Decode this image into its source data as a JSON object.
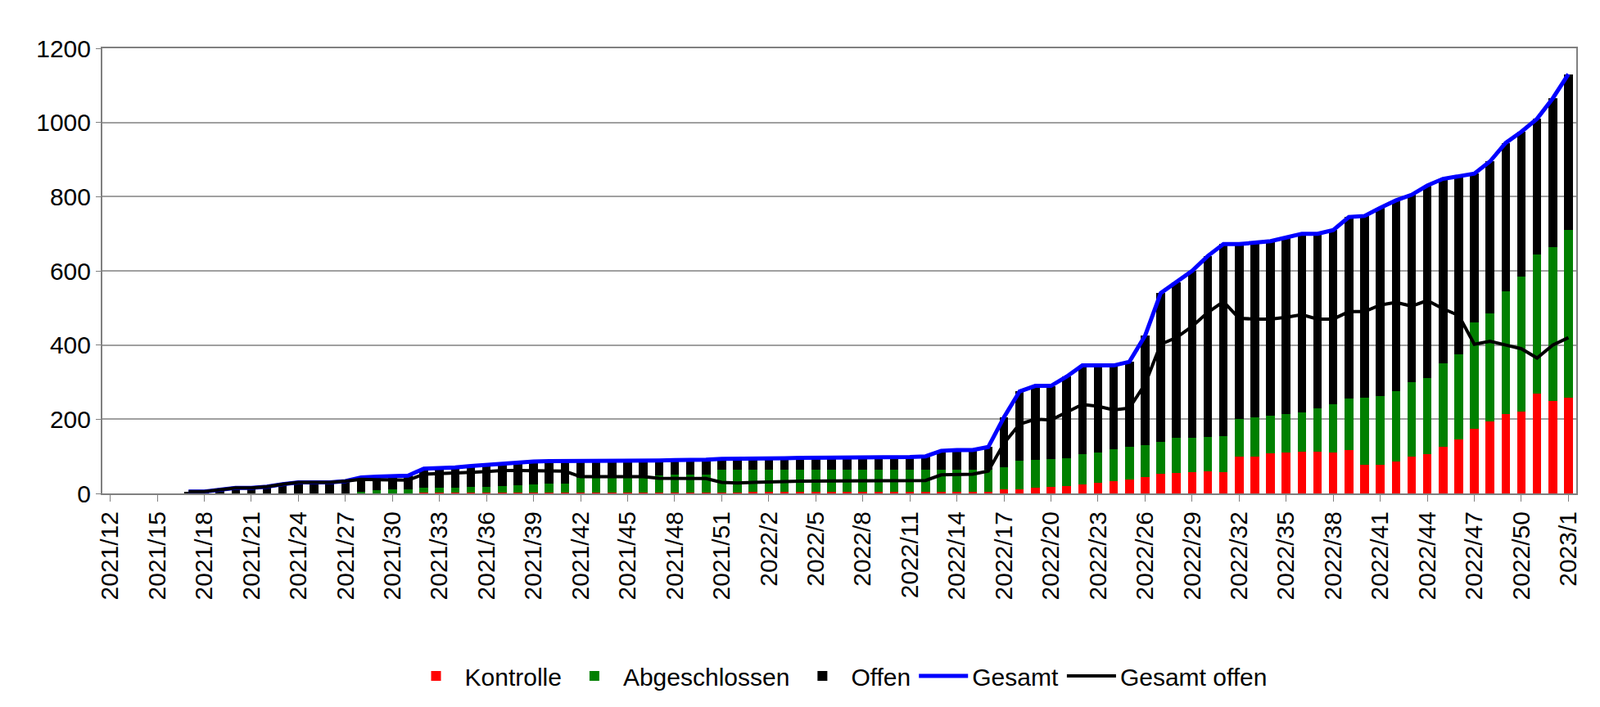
{
  "chart_data": {
    "type": "bar",
    "stacked": true,
    "grid": true,
    "legend": "bottom",
    "ylim": [
      0,
      1200
    ],
    "yticks": [
      0,
      200,
      400,
      600,
      800,
      1000,
      1200
    ],
    "categories": [
      "2021/12",
      null,
      null,
      "2021/15",
      null,
      null,
      "2021/18",
      null,
      null,
      "2021/21",
      null,
      null,
      "2021/24",
      null,
      null,
      "2021/27",
      null,
      null,
      "2021/30",
      null,
      null,
      "2021/33",
      null,
      null,
      "2021/36",
      null,
      null,
      "2021/39",
      null,
      null,
      "2021/42",
      null,
      null,
      "2021/45",
      null,
      null,
      "2021/48",
      null,
      null,
      "2021/51",
      null,
      null,
      "2022/2",
      null,
      null,
      "2022/5",
      null,
      null,
      "2022/8",
      null,
      null,
      "2022/11",
      null,
      null,
      "2022/14",
      null,
      null,
      "2022/17",
      null,
      null,
      "2022/20",
      null,
      null,
      "2022/23",
      null,
      null,
      "2022/26",
      null,
      null,
      "2022/29",
      null,
      null,
      "2022/32",
      null,
      null,
      "2022/35",
      null,
      null,
      "2022/38",
      null,
      null,
      "2022/41",
      null,
      null,
      "2022/44",
      null,
      null,
      "2022/47",
      null,
      null,
      "2022/50",
      null,
      null,
      "2023/1"
    ],
    "series": [
      {
        "name": "Kontrolle",
        "type": "bar",
        "color": "#ff0000",
        "values": [
          null,
          null,
          null,
          null,
          null,
          0,
          0,
          0,
          0,
          0,
          0,
          0,
          0,
          0,
          0,
          0,
          0,
          0,
          0,
          0,
          3,
          3,
          3,
          3,
          3,
          3,
          3,
          3,
          3,
          3,
          3,
          3,
          3,
          3,
          3,
          3,
          3,
          3,
          3,
          3,
          3,
          4,
          4,
          4,
          4,
          4,
          4,
          4,
          4,
          4,
          4,
          4,
          4,
          4,
          4,
          4,
          4,
          10,
          12,
          15,
          18,
          20,
          25,
          28,
          33,
          38,
          45,
          52,
          55,
          58,
          60,
          58,
          100,
          100,
          108,
          110,
          112,
          112,
          110,
          118,
          78,
          78,
          85,
          100,
          105,
          125,
          145,
          175,
          195,
          215,
          220,
          270,
          250,
          258
        ]
      },
      {
        "name": "Abgeschlossen",
        "type": "bar",
        "color": "#008000",
        "values": [
          null,
          null,
          null,
          null,
          null,
          0,
          0,
          0,
          0,
          0,
          0,
          0,
          0,
          0,
          0,
          0,
          5,
          8,
          10,
          12,
          12,
          12,
          12,
          14,
          15,
          17,
          19,
          22,
          24,
          24,
          39,
          40,
          40,
          40,
          40,
          45,
          47,
          47,
          48,
          60,
          62,
          59,
          60,
          59,
          59,
          59,
          60,
          61,
          61,
          61,
          61,
          61,
          61,
          61,
          61,
          61,
          61,
          60,
          76,
          75,
          74,
          75,
          80,
          82,
          87,
          87,
          85,
          86,
          95,
          92,
          92,
          97,
          100,
          105,
          102,
          105,
          106,
          118,
          130,
          137,
          180,
          184,
          190,
          200,
          205,
          225,
          230,
          285,
          290,
          330,
          365,
          375,
          415,
          452
        ]
      },
      {
        "name": "Offen",
        "type": "bar",
        "color": "#000000",
        "values": [
          null,
          null,
          null,
          null,
          null,
          5,
          5,
          10,
          15,
          15,
          18,
          25,
          30,
          30,
          30,
          33,
          38,
          37,
          37,
          36,
          52,
          53,
          55,
          57,
          59,
          62,
          62,
          61,
          60,
          60,
          45,
          45,
          45,
          45,
          45,
          41,
          40,
          40,
          40,
          30,
          28,
          30,
          30,
          32,
          33,
          33,
          33,
          33,
          33,
          33,
          33,
          33,
          35,
          50,
          52,
          52,
          60,
          135,
          187,
          200,
          198,
          220,
          240,
          235,
          225,
          230,
          295,
          402,
          420,
          450,
          488,
          517,
          472,
          470,
          470,
          475,
          482,
          470,
          470,
          490,
          490,
          508,
          515,
          505,
          520,
          498,
          480,
          402,
          410,
          400,
          390,
          365,
          400,
          420
        ]
      },
      {
        "name": "Gesamt",
        "type": "line",
        "color": "#0000ff",
        "values": [
          null,
          null,
          null,
          null,
          null,
          5,
          5,
          10,
          15,
          15,
          18,
          25,
          30,
          30,
          30,
          33,
          43,
          45,
          47,
          48,
          67,
          68,
          70,
          74,
          77,
          82,
          84,
          86,
          87,
          87,
          87,
          88,
          88,
          88,
          88,
          89,
          90,
          90,
          91,
          93,
          93,
          93,
          94,
          95,
          96,
          96,
          97,
          98,
          98,
          98,
          98,
          98,
          100,
          115,
          117,
          117,
          125,
          205,
          275,
          290,
          290,
          315,
          345,
          345,
          345,
          355,
          425,
          540,
          570,
          600,
          640,
          672,
          672,
          675,
          680,
          690,
          700,
          700,
          710,
          745,
          748,
          770,
          790,
          805,
          830,
          848,
          855,
          862,
          895,
          945,
          975,
          1010,
          1065,
          1130
        ]
      },
      {
        "name": "Gesamt offen",
        "type": "line",
        "color": "#000000",
        "values": [
          null,
          null,
          null,
          null,
          null,
          5,
          5,
          10,
          15,
          15,
          18,
          25,
          30,
          30,
          30,
          33,
          38,
          37,
          37,
          36,
          52,
          53,
          55,
          57,
          59,
          62,
          62,
          61,
          60,
          60,
          45,
          45,
          45,
          45,
          45,
          41,
          40,
          40,
          40,
          30,
          28,
          30,
          30,
          32,
          33,
          33,
          33,
          33,
          33,
          33,
          33,
          33,
          35,
          50,
          52,
          52,
          60,
          135,
          187,
          200,
          198,
          220,
          240,
          235,
          225,
          230,
          295,
          402,
          420,
          450,
          488,
          517,
          472,
          470,
          470,
          475,
          482,
          470,
          470,
          490,
          490,
          508,
          515,
          505,
          520,
          498,
          480,
          402,
          410,
          400,
          390,
          365,
          400,
          420
        ]
      }
    ]
  }
}
